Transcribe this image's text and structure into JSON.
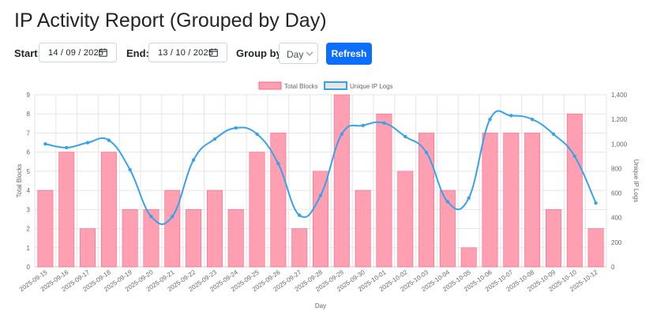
{
  "page": {
    "title": "IP Activity Report (Grouped by Day)"
  },
  "controls": {
    "start_label": "Start:",
    "start_value": "14 / 09 / 2025",
    "end_label": "End:",
    "end_value": "13 / 10 / 2025",
    "group_label": "Group by:",
    "group_value": "Day",
    "refresh_label": "Refresh"
  },
  "colors": {
    "bar_fill": "#ff9fb2",
    "bar_stroke": "#ff6384",
    "line": "#36a2eb",
    "grid": "#e5e5e5",
    "button": "#0d6efd"
  },
  "icons": {
    "calendar": "calendar-icon",
    "chevron": "chevron-down-icon"
  },
  "chart_data": {
    "type": "bar",
    "xlabel": "Day",
    "ylabel": "Total Blocks",
    "y2label": "Unique IP Logs",
    "legend_position": "top",
    "grid": true,
    "ylim": [
      0,
      9
    ],
    "y2lim": [
      0,
      1400
    ],
    "yticks": [
      "0",
      "1",
      "2",
      "3",
      "4",
      "5",
      "6",
      "7",
      "8",
      "9"
    ],
    "y2ticks": [
      "0",
      "200",
      "400",
      "600",
      "800",
      "1,000",
      "1,200",
      "1,400"
    ],
    "categories": [
      "2025-09-15",
      "2025-09-16",
      "2025-09-17",
      "2025-09-18",
      "2025-09-19",
      "2025-09-20",
      "2025-09-21",
      "2025-09-22",
      "2025-09-23",
      "2025-09-24",
      "2025-09-25",
      "2025-09-26",
      "2025-09-27",
      "2025-09-28",
      "2025-09-29",
      "2025-09-30",
      "2025-10-01",
      "2025-10-02",
      "2025-10-03",
      "2025-10-04",
      "2025-10-05",
      "2025-10-06",
      "2025-10-07",
      "2025-10-08",
      "2025-10-09",
      "2025-10-10",
      "2025-10-12"
    ],
    "series": [
      {
        "name": "Total Blocks",
        "type": "bar",
        "axis": "left",
        "values": [
          4,
          6,
          2,
          6,
          3,
          3,
          4,
          3,
          4,
          3,
          6,
          7,
          2,
          5,
          9,
          4,
          8,
          5,
          7,
          4,
          1,
          7,
          7,
          7,
          3,
          8,
          2
        ]
      },
      {
        "name": "Unique IP Logs",
        "type": "line",
        "axis": "right",
        "values": [
          1000,
          970,
          1010,
          1030,
          790,
          410,
          410,
          870,
          1040,
          1130,
          1080,
          840,
          420,
          580,
          1080,
          1150,
          1170,
          1060,
          930,
          530,
          560,
          1200,
          1230,
          1200,
          1080,
          900,
          520
        ]
      }
    ]
  }
}
